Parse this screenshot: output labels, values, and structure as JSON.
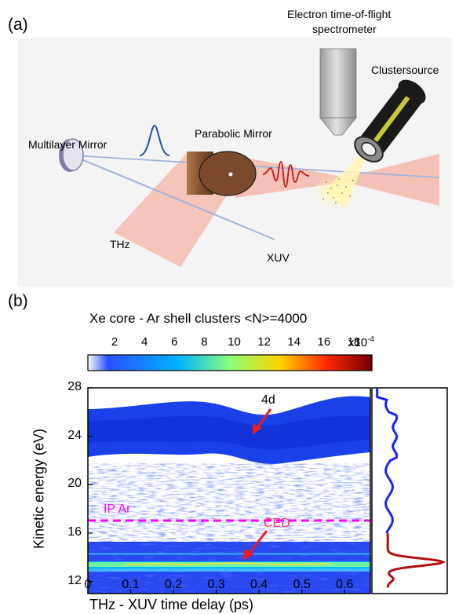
{
  "panel_a": {
    "letter": "(a)",
    "labels": {
      "spectrometer_line1": "Electron time-of-flight",
      "spectrometer_line2": "spectrometer",
      "clustersource": "Clustersource",
      "multilayer_mirror": "Multilayer Mirror",
      "parabolic_mirror": "Parabolic Mirror",
      "thz": "THz",
      "xuv": "XUV"
    }
  },
  "panel_b": {
    "letter": "(b)",
    "title": "Xe core - Ar shell clusters <N>=4000",
    "colorbar": {
      "ticks": [
        "2",
        "4",
        "6",
        "8",
        "10",
        "12",
        "14",
        "16",
        "18"
      ],
      "multiplier_base": "x10",
      "multiplier_exp": "-4",
      "colors": [
        "#ffffff",
        "#3050ff",
        "#00c8ff",
        "#b4ff50",
        "#ffb400",
        "#e00000",
        "#6e0000"
      ]
    },
    "annotations": {
      "peak_4d": "4d",
      "ip_ar": "IP Ar",
      "ced": "CED"
    },
    "colors": {
      "ip_line": "#ff00ff",
      "arrow": "#ee1c1c",
      "ced_text": "#ff3060",
      "profile_blue": "#1a22ff",
      "profile_red": "#b01010"
    }
  },
  "chart_data": {
    "type": "heatmap",
    "title": "Xe core - Ar shell clusters <N>=4000",
    "xlabel": "THz - XUV time delay (ps)",
    "ylabel": "Kinetic energy (eV)",
    "xlim": [
      0,
      0.66
    ],
    "ylim": [
      11,
      28
    ],
    "xticks": [
      "0",
      "0.1",
      "0.2",
      "0.3",
      "0.4",
      "0.5",
      "0.6"
    ],
    "yticks": [
      "12",
      "16",
      "20",
      "24",
      "28"
    ],
    "colorscale_range": [
      0,
      0.0019
    ],
    "bands": [
      {
        "label": "4d",
        "center_eV": 24.0,
        "width_eV": 2.0,
        "level": 5
      },
      {
        "label": "CED",
        "center_eV": 13.6,
        "width_eV": 0.6,
        "level": 12
      }
    ],
    "ip_ar_eV": 15.75,
    "side_profile": {
      "blue_segment_eV": [
        16,
        28
      ],
      "red_segment_eV": [
        11.5,
        16
      ],
      "red_peak_eV": 13.6
    }
  }
}
